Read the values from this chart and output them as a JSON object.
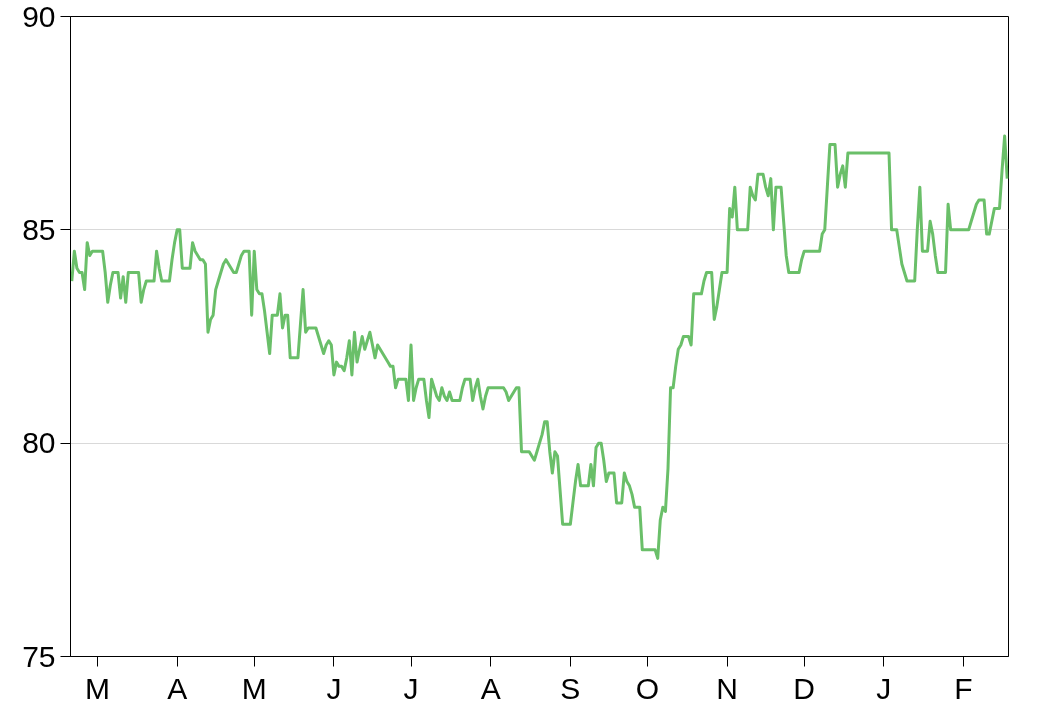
{
  "chart_data": {
    "type": "line",
    "line_style": "solid",
    "marker": "none",
    "grid": "y",
    "ylim": [
      75,
      90
    ],
    "yticks": [
      75,
      80,
      85,
      90
    ],
    "categories": [
      null,
      null,
      null,
      null,
      null,
      null,
      null,
      null,
      null,
      null,
      "M",
      null,
      null,
      null,
      null,
      null,
      null,
      null,
      null,
      null,
      null,
      null,
      null,
      null,
      null,
      null,
      null,
      null,
      null,
      null,
      null,
      null,
      null,
      null,
      null,
      null,
      null,
      null,
      null,
      null,
      null,
      "A",
      null,
      null,
      null,
      null,
      null,
      null,
      null,
      null,
      null,
      null,
      null,
      null,
      null,
      null,
      null,
      null,
      null,
      null,
      null,
      null,
      null,
      null,
      null,
      null,
      null,
      null,
      null,
      null,
      null,
      "M",
      null,
      null,
      null,
      null,
      null,
      null,
      null,
      null,
      null,
      null,
      null,
      null,
      null,
      null,
      null,
      null,
      null,
      null,
      null,
      null,
      null,
      null,
      null,
      null,
      null,
      null,
      null,
      null,
      null,
      null,
      "J",
      null,
      null,
      null,
      null,
      null,
      null,
      null,
      null,
      null,
      null,
      null,
      null,
      null,
      null,
      null,
      null,
      null,
      null,
      null,
      null,
      null,
      null,
      null,
      null,
      null,
      null,
      null,
      null,
      null,
      "J",
      null,
      null,
      null,
      null,
      null,
      null,
      null,
      null,
      null,
      null,
      null,
      null,
      null,
      null,
      null,
      null,
      null,
      null,
      null,
      null,
      null,
      null,
      null,
      null,
      null,
      null,
      null,
      null,
      null,
      null,
      "A",
      null,
      null,
      null,
      null,
      null,
      null,
      null,
      null,
      null,
      null,
      null,
      null,
      null,
      null,
      null,
      null,
      null,
      null,
      null,
      null,
      null,
      null,
      null,
      null,
      null,
      null,
      null,
      null,
      null,
      null,
      "S",
      null,
      null,
      null,
      null,
      null,
      null,
      null,
      null,
      null,
      null,
      null,
      null,
      null,
      null,
      null,
      null,
      null,
      null,
      null,
      null,
      null,
      null,
      null,
      null,
      null,
      null,
      null,
      null,
      null,
      "O",
      null,
      null,
      null,
      null,
      null,
      null,
      null,
      null,
      null,
      null,
      null,
      null,
      null,
      null,
      null,
      null,
      null,
      null,
      null,
      null,
      null,
      null,
      null,
      null,
      null,
      null,
      null,
      null,
      null,
      null,
      "N",
      null,
      null,
      null,
      null,
      null,
      null,
      null,
      null,
      null,
      null,
      null,
      null,
      null,
      null,
      null,
      null,
      null,
      null,
      null,
      null,
      null,
      null,
      null,
      null,
      null,
      null,
      null,
      null,
      null,
      "D",
      null,
      null,
      null,
      null,
      null,
      null,
      null,
      null,
      null,
      null,
      null,
      null,
      null,
      null,
      null,
      null,
      null,
      null,
      null,
      null,
      null,
      null,
      null,
      null,
      null,
      null,
      null,
      null,
      null,
      null,
      "J",
      null,
      null,
      null,
      null,
      null,
      null,
      null,
      null,
      null,
      null,
      null,
      null,
      null,
      null,
      null,
      null,
      null,
      null,
      null,
      null,
      null,
      null,
      null,
      null,
      null,
      null,
      null,
      null,
      null,
      null,
      "F",
      null,
      null,
      null,
      null,
      null,
      null,
      null,
      null,
      null,
      null,
      null,
      null,
      null,
      null,
      null,
      null,
      null
    ],
    "series": [
      {
        "color": "#6abf69",
        "values": [
          83.8,
          84.5,
          84.1,
          84.0,
          84.0,
          83.6,
          84.7,
          84.4,
          84.5,
          84.5,
          84.5,
          84.5,
          84.5,
          84.0,
          83.3,
          83.7,
          84.0,
          84.0,
          84.0,
          83.4,
          83.9,
          83.3,
          84.0,
          84.0,
          84.0,
          84.0,
          84.0,
          83.3,
          83.6,
          83.8,
          83.8,
          83.8,
          83.8,
          84.5,
          84.1,
          83.8,
          83.8,
          83.8,
          83.8,
          84.3,
          84.7,
          85.0,
          85.0,
          84.1,
          84.1,
          84.1,
          84.1,
          84.7,
          84.5,
          84.4,
          84.3,
          84.3,
          84.2,
          82.6,
          82.9,
          83.0,
          83.6,
          83.8,
          84.0,
          84.2,
          84.3,
          84.2,
          84.1,
          84.0,
          84.0,
          84.2,
          84.4,
          84.5,
          84.5,
          84.5,
          83.0,
          84.5,
          83.6,
          83.5,
          83.5,
          83.1,
          82.6,
          82.1,
          83.0,
          83.0,
          83.0,
          83.5,
          82.7,
          83.0,
          83.0,
          82.0,
          82.0,
          82.0,
          82.0,
          82.8,
          83.6,
          82.6,
          82.7,
          82.7,
          82.7,
          82.7,
          82.5,
          82.3,
          82.1,
          82.3,
          82.4,
          82.3,
          81.6,
          81.9,
          81.8,
          81.8,
          81.7,
          82.0,
          82.4,
          81.6,
          82.6,
          81.9,
          82.2,
          82.5,
          82.2,
          82.4,
          82.6,
          82.3,
          82.0,
          82.3,
          82.2,
          82.1,
          82.0,
          81.9,
          81.8,
          81.8,
          81.3,
          81.5,
          81.5,
          81.5,
          81.5,
          81.0,
          82.3,
          81.0,
          81.3,
          81.5,
          81.5,
          81.5,
          81.0,
          80.6,
          81.5,
          81.3,
          81.1,
          81.0,
          81.3,
          81.1,
          81.0,
          81.2,
          81.0,
          81.0,
          81.0,
          81.0,
          81.3,
          81.5,
          81.5,
          81.5,
          81.0,
          81.3,
          81.5,
          81.1,
          80.8,
          81.1,
          81.3,
          81.3,
          81.3,
          81.3,
          81.3,
          81.3,
          81.3,
          81.2,
          81.0,
          81.1,
          81.2,
          81.3,
          81.3,
          79.8,
          79.8,
          79.8,
          79.8,
          79.7,
          79.6,
          79.8,
          80.0,
          80.2,
          80.5,
          80.5,
          79.8,
          79.3,
          79.8,
          79.7,
          78.9,
          78.1,
          78.1,
          78.1,
          78.1,
          78.6,
          79.1,
          79.5,
          79.0,
          79.0,
          79.0,
          79.0,
          79.5,
          79.0,
          79.9,
          80.0,
          80.0,
          79.6,
          79.1,
          79.3,
          79.3,
          79.3,
          78.6,
          78.6,
          78.6,
          79.3,
          79.1,
          79.0,
          78.8,
          78.5,
          78.5,
          78.5,
          77.5,
          77.5,
          77.5,
          77.5,
          77.5,
          77.5,
          77.3,
          78.2,
          78.5,
          78.4,
          79.4,
          81.3,
          81.3,
          81.8,
          82.2,
          82.3,
          82.5,
          82.5,
          82.5,
          82.3,
          83.5,
          83.5,
          83.5,
          83.5,
          83.8,
          84.0,
          84.0,
          84.0,
          82.9,
          83.2,
          83.6,
          84.0,
          84.0,
          84.0,
          85.5,
          85.3,
          86.0,
          85.0,
          85.0,
          85.0,
          85.0,
          85.0,
          86.0,
          85.8,
          85.7,
          86.3,
          86.3,
          86.3,
          86.0,
          85.8,
          86.2,
          85.0,
          86.0,
          86.0,
          86.0,
          85.2,
          84.4,
          84.0,
          84.0,
          84.0,
          84.0,
          84.0,
          84.3,
          84.5,
          84.5,
          84.5,
          84.5,
          84.5,
          84.5,
          84.5,
          84.9,
          85.0,
          86.0,
          87.0,
          87.0,
          87.0,
          86.0,
          86.3,
          86.5,
          86.0,
          86.8,
          86.8,
          86.8,
          86.8,
          86.8,
          86.8,
          86.8,
          86.8,
          86.8,
          86.8,
          86.8,
          86.8,
          86.8,
          86.8,
          86.8,
          86.8,
          86.8,
          85.0,
          85.0,
          85.0,
          84.6,
          84.2,
          84.0,
          83.8,
          83.8,
          83.8,
          83.8,
          85.0,
          86.0,
          84.5,
          84.5,
          84.5,
          85.2,
          84.9,
          84.4,
          84.0,
          84.0,
          84.0,
          84.0,
          85.6,
          85.0,
          85.0,
          85.0,
          85.0,
          85.0,
          85.0,
          85.0,
          85.0,
          85.2,
          85.4,
          85.6,
          85.7,
          85.7,
          85.7,
          84.9,
          84.9,
          85.2,
          85.5,
          85.5,
          85.5,
          86.4,
          87.2,
          86.2
        ]
      }
    ]
  }
}
